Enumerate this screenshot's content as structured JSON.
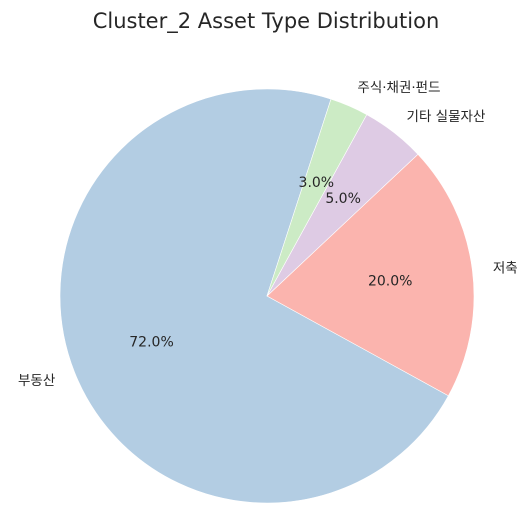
{
  "chart_data": {
    "type": "pie",
    "title": "Cluster_2 Asset Type Distribution",
    "categories": [
      "부동산",
      "저축",
      "기타 실물자산",
      "주식·채권·펀드"
    ],
    "values": [
      72.0,
      20.0,
      5.0,
      3.0
    ],
    "value_labels": [
      "72.0%",
      "20.0%",
      "5.0%",
      "3.0%"
    ],
    "colors": [
      "#b3cde3",
      "#fbb4ae",
      "#decbe4",
      "#ccebc5"
    ],
    "start_angle_deg": 72,
    "direction": "counterclockwise",
    "legend": "none"
  }
}
